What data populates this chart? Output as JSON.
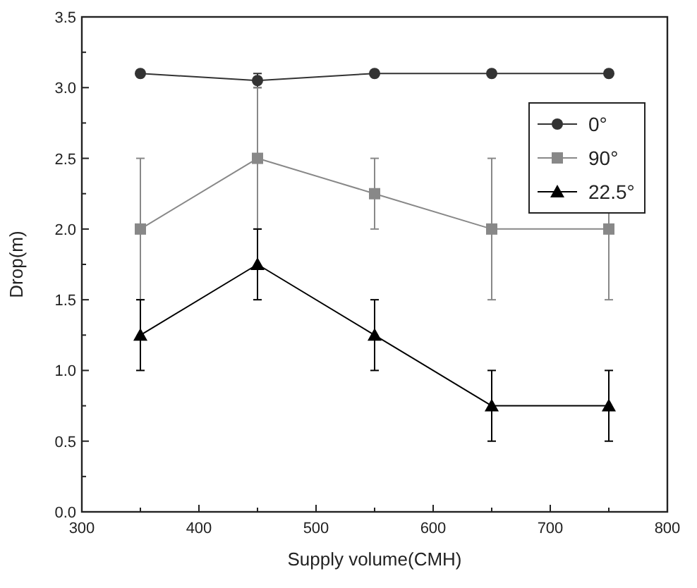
{
  "chart_data": {
    "type": "line",
    "xlabel": "Supply volume(CMH)",
    "ylabel": "Drop(m)",
    "x": [
      350,
      450,
      550,
      650,
      750
    ],
    "xlim": [
      300,
      800
    ],
    "xticks": [
      300,
      400,
      500,
      600,
      700,
      800
    ],
    "ylim": [
      0,
      3.5
    ],
    "yticks": [
      {
        "value": 0,
        "label": "0.0"
      },
      0.5,
      {
        "value": 1,
        "label": "1.0"
      },
      1.5,
      {
        "value": 2,
        "label": "2.0"
      },
      2.5,
      {
        "value": 3,
        "label": "3.0"
      },
      3.5
    ],
    "grid": false,
    "legend": "top right",
    "series": [
      {
        "name": "0°",
        "color": "#333333",
        "marker": "circle",
        "values": [
          3.1,
          3.05,
          3.1,
          3.1,
          3.1
        ],
        "errors": [
          null,
          0.05,
          null,
          null,
          null
        ]
      },
      {
        "name": "90°",
        "color": "#888888",
        "marker": "square",
        "values": [
          2.0,
          2.5,
          2.25,
          2.0,
          2.0
        ],
        "errors": [
          0.5,
          0.5,
          0.25,
          0.5,
          0.5
        ]
      },
      {
        "name": "22.5°",
        "color": "#000000",
        "marker": "triangle",
        "values": [
          1.25,
          1.75,
          1.25,
          0.75,
          0.75
        ],
        "errors": [
          0.25,
          0.25,
          0.25,
          0.25,
          0.25
        ]
      }
    ]
  }
}
